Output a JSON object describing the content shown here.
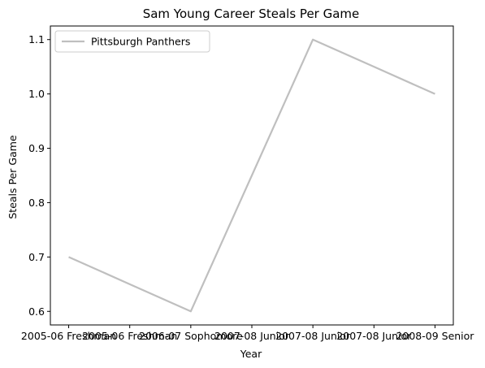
{
  "chart_data": {
    "type": "line",
    "title": "Sam Young  Career Steals Per Game",
    "xlabel": "Year",
    "ylabel": "Steals Per Game",
    "x": [
      "2005-06 Freshman",
      "2005-06 Freshman",
      "2006-07 Sophomore",
      "2007-08 Junior",
      "2007-08 Junior",
      "2007-08 Junior",
      "2008-09 Senior"
    ],
    "ylim": [
      0.575,
      1.125
    ],
    "yticks": [
      "0.6",
      "0.7",
      "0.8",
      "0.9",
      "1.0",
      "1.1"
    ],
    "series": [
      {
        "name": "Pittsburgh Panthers",
        "color": "#bfbfbf",
        "values": [
          0.7,
          0.65,
          0.6,
          0.85,
          1.1,
          1.05,
          1.0
        ]
      }
    ],
    "legend": "top-left",
    "grid": false
  }
}
